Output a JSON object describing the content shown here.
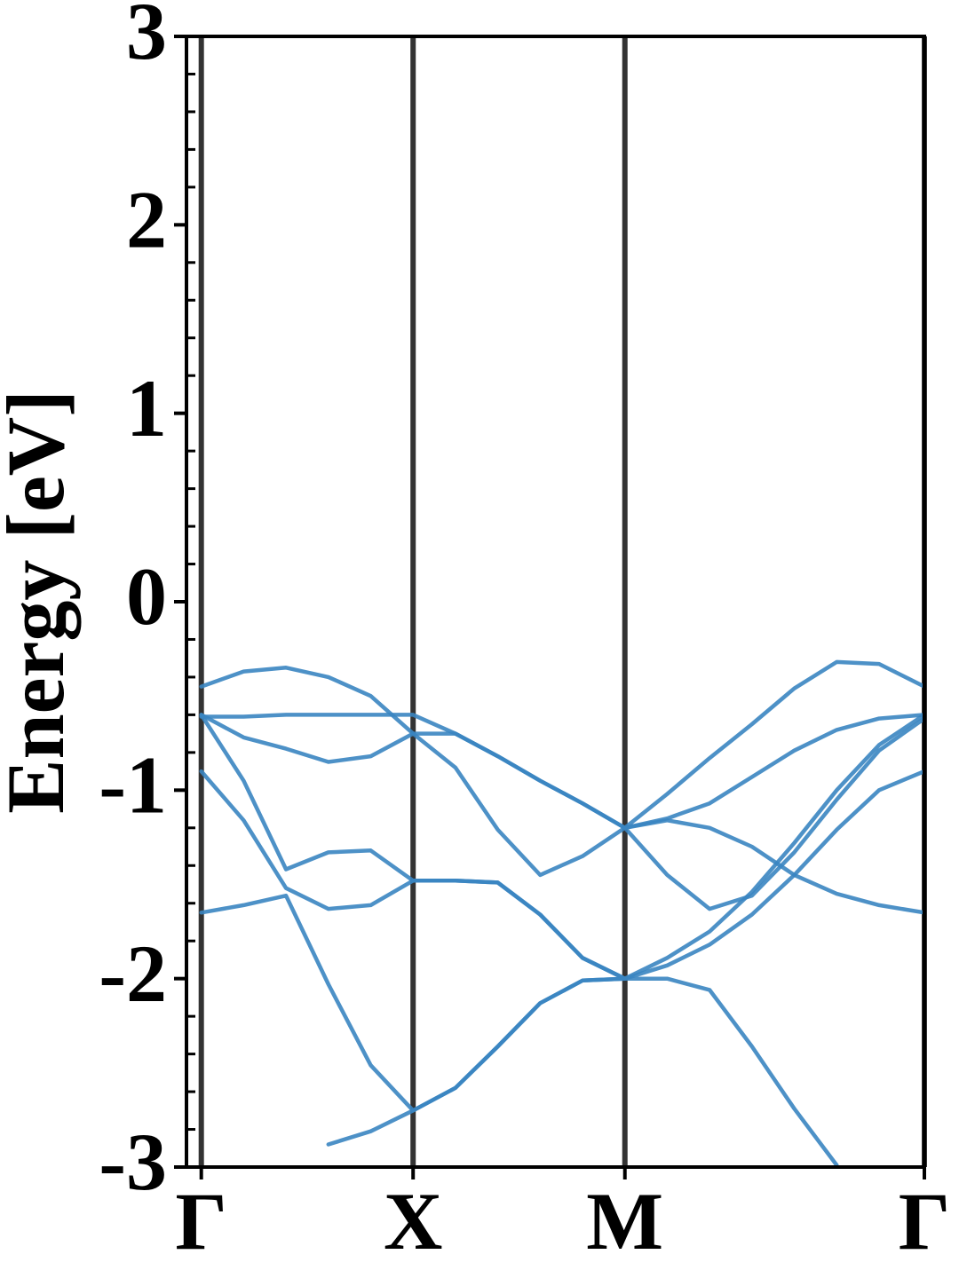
{
  "chart_data": {
    "type": "line",
    "y_label": "Energy [eV]",
    "x": [
      0,
      0.2,
      0.4,
      0.6,
      0.8,
      1,
      1.2,
      1.4,
      1.6,
      1.8,
      2,
      2.2,
      2.4,
      2.6,
      2.8,
      3,
      3.2,
      3.414
    ],
    "series": [
      {
        "color": "#3a85c1",
        "values": [
          -0.45,
          -0.37,
          -0.35,
          -0.4,
          -0.5,
          -0.7,
          -0.7,
          -0.82,
          -0.95,
          -1.07,
          -1.2,
          -1.02,
          -0.83,
          -0.65,
          -0.46,
          -0.32,
          -0.33,
          -0.45
        ]
      },
      {
        "color": "#3a85c1",
        "values": [
          -0.61,
          -0.61,
          -0.6,
          -0.6,
          -0.6,
          -0.6,
          -0.7,
          -0.82,
          -0.95,
          -1.07,
          -1.2,
          -1.15,
          -1.07,
          -0.93,
          -0.79,
          -0.68,
          -0.62,
          -0.6
        ]
      },
      {
        "color": "#3a85c1",
        "values": [
          -0.6,
          -0.72,
          -0.78,
          -0.85,
          -0.82,
          -0.7,
          -0.88,
          -1.21,
          -1.45,
          -1.35,
          -1.2,
          -1.45,
          -1.63,
          -1.56,
          -1.33,
          -1.05,
          -0.79,
          -0.62
        ]
      },
      {
        "color": "#3a85c1",
        "values": [
          -0.6,
          -0.95,
          -1.42,
          -1.33,
          -1.32,
          -1.48,
          -1.48,
          -1.49,
          -1.66,
          -1.89,
          -2.0,
          -1.89,
          -1.75,
          -1.54,
          -1.28,
          -1.0,
          -0.76,
          -0.6
        ]
      },
      {
        "color": "#3a85c1",
        "values": [
          -0.9,
          -1.16,
          -1.52,
          -1.63,
          -1.61,
          -1.48,
          -1.48,
          -1.49,
          -1.66,
          -1.89,
          -2.0,
          -1.93,
          -1.82,
          -1.66,
          -1.45,
          -1.21,
          -1.0,
          -0.9
        ]
      },
      {
        "color": "#3a85c1",
        "values": [
          -1.65,
          -1.61,
          -1.56,
          -2.03,
          -2.46,
          -2.7,
          -2.58,
          -2.36,
          -2.13,
          -2.01,
          -2.0,
          -2.0,
          -2.06,
          -2.36,
          -2.69,
          -2.99,
          null,
          null
        ]
      },
      {
        "color": "#3a85c1",
        "values": [
          null,
          null,
          null,
          -2.88,
          -2.81,
          -2.7,
          -2.58,
          -2.36,
          -2.13,
          -2.01,
          -2.0,
          null,
          null,
          null,
          null,
          null,
          null,
          null
        ]
      },
      {
        "color": "#3a85c1",
        "values": [
          null,
          null,
          null,
          null,
          null,
          null,
          null,
          null,
          null,
          null,
          -1.2,
          -1.16,
          -1.2,
          -1.3,
          -1.45,
          -1.55,
          -1.61,
          -1.65
        ]
      }
    ],
    "xlim": [
      -0.07,
      3.414
    ],
    "xticks": [
      {
        "value": 0,
        "label": "Γ"
      },
      {
        "value": 1,
        "label": "X"
      },
      {
        "value": 2,
        "label": "M"
      },
      {
        "value": 3.414,
        "label": "Γ"
      }
    ],
    "xgrid_color": "#333333",
    "ylim": [
      -3,
      3
    ],
    "yticks": [
      3,
      2,
      1,
      0,
      -1,
      -2,
      -3
    ],
    "yminorticks": [
      -2.8,
      -2.6,
      -2.4,
      -2.2,
      -1.8,
      -1.6,
      -1.4,
      -1.2,
      -0.8,
      -0.6,
      -0.4,
      -0.2,
      0.2,
      0.4,
      0.6,
      0.8,
      1.2,
      1.4,
      1.6,
      1.8,
      2.2,
      2.4,
      2.6,
      2.8
    ]
  }
}
